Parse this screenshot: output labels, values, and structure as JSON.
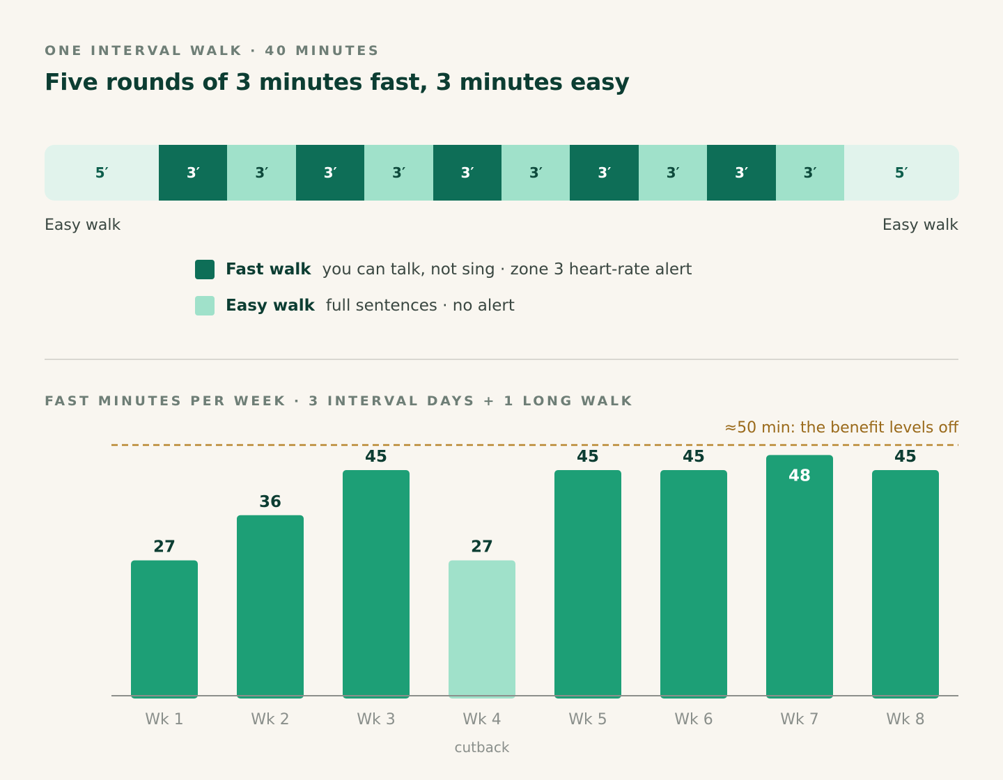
{
  "walk": {
    "eyebrow": "ONE INTERVAL WALK · 40 MINUTES",
    "title": "Five rounds of 3 minutes fast, 3 minutes easy",
    "segments": [
      {
        "label": "5′",
        "minutes": 5,
        "kind": "warm"
      },
      {
        "label": "3′",
        "minutes": 3,
        "kind": "fast"
      },
      {
        "label": "3′",
        "minutes": 3,
        "kind": "easy"
      },
      {
        "label": "3′",
        "minutes": 3,
        "kind": "fast"
      },
      {
        "label": "3′",
        "minutes": 3,
        "kind": "easy"
      },
      {
        "label": "3′",
        "minutes": 3,
        "kind": "fast"
      },
      {
        "label": "3′",
        "minutes": 3,
        "kind": "easy"
      },
      {
        "label": "3′",
        "minutes": 3,
        "kind": "fast"
      },
      {
        "label": "3′",
        "minutes": 3,
        "kind": "easy"
      },
      {
        "label": "3′",
        "minutes": 3,
        "kind": "fast"
      },
      {
        "label": "3′",
        "minutes": 3,
        "kind": "easy"
      },
      {
        "label": "5′",
        "minutes": 5,
        "kind": "warm"
      }
    ],
    "start_label": "Easy walk",
    "end_label": "Easy walk"
  },
  "legend": {
    "fast": {
      "name": "Fast walk",
      "desc": "you can talk, not sing · zone 3 heart-rate alert"
    },
    "easy": {
      "name": "Easy walk",
      "desc": "full sentences · no alert"
    }
  },
  "colors": {
    "fast": "#0e6e57",
    "easy": "#a0e1ca",
    "warm": "#e1f3ec",
    "bar": "#1d9f76",
    "bar_cutback": "#a0e1ca",
    "threshold": "#b8862e"
  },
  "chart_data": {
    "type": "bar",
    "title": "FAST MINUTES PER WEEK · 3 INTERVAL DAYS + 1 LONG WALK",
    "categories": [
      "Wk 1",
      "Wk 2",
      "Wk 3",
      "Wk 4",
      "Wk 5",
      "Wk 6",
      "Wk 7",
      "Wk 8"
    ],
    "sublabels": [
      "",
      "",
      "",
      "cutback",
      "",
      "",
      "",
      ""
    ],
    "values": [
      27,
      36,
      45,
      27,
      45,
      45,
      48,
      45
    ],
    "highlight": [
      false,
      false,
      false,
      true,
      false,
      false,
      false,
      false
    ],
    "ylim": [
      0,
      50
    ],
    "threshold": {
      "value": 50,
      "label": "≈50 min: the benefit levels off"
    },
    "grid": false
  }
}
